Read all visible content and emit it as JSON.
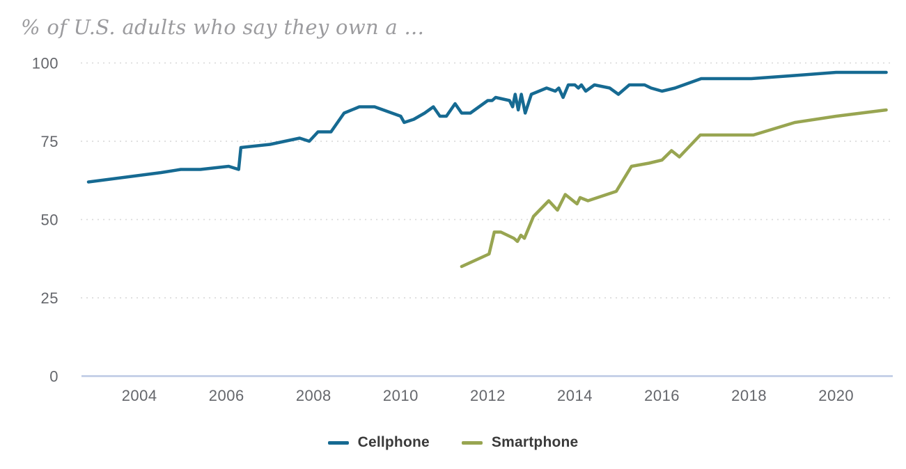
{
  "chart_data": {
    "type": "line",
    "title": "% of U.S. adults who say they own a ...",
    "xlabel": "",
    "ylabel": "",
    "x_ticks": [
      "2004",
      "2006",
      "2008",
      "2010",
      "2012",
      "2014",
      "2016",
      "2018",
      "2020"
    ],
    "y_ticks": [
      "0",
      "25",
      "50",
      "75",
      "100"
    ],
    "xlim": [
      2002.67,
      2021.3
    ],
    "ylim": [
      0,
      100
    ],
    "grid": "horizontal-dotted",
    "legend_position": "bottom-center",
    "series": [
      {
        "name": "Cellphone",
        "color": "#166a92",
        "points": [
          [
            2002.83,
            62
          ],
          [
            2004.5,
            65
          ],
          [
            2004.95,
            66
          ],
          [
            2005.4,
            66
          ],
          [
            2006.05,
            67
          ],
          [
            2006.28,
            66
          ],
          [
            2006.33,
            73
          ],
          [
            2007.0,
            74
          ],
          [
            2007.68,
            76
          ],
          [
            2007.9,
            75
          ],
          [
            2008.1,
            78
          ],
          [
            2008.4,
            78
          ],
          [
            2008.7,
            84
          ],
          [
            2009.05,
            86
          ],
          [
            2009.4,
            86
          ],
          [
            2009.8,
            84
          ],
          [
            2010.0,
            83
          ],
          [
            2010.08,
            81
          ],
          [
            2010.3,
            82
          ],
          [
            2010.55,
            84
          ],
          [
            2010.75,
            86
          ],
          [
            2010.9,
            83
          ],
          [
            2011.05,
            83
          ],
          [
            2011.25,
            87
          ],
          [
            2011.4,
            84
          ],
          [
            2011.6,
            84
          ],
          [
            2012.0,
            88
          ],
          [
            2012.1,
            88
          ],
          [
            2012.18,
            89
          ],
          [
            2012.5,
            88
          ],
          [
            2012.57,
            86
          ],
          [
            2012.63,
            90
          ],
          [
            2012.7,
            85
          ],
          [
            2012.77,
            90
          ],
          [
            2012.86,
            84
          ],
          [
            2013.0,
            90
          ],
          [
            2013.35,
            92
          ],
          [
            2013.55,
            91
          ],
          [
            2013.63,
            92
          ],
          [
            2013.73,
            89
          ],
          [
            2013.85,
            93
          ],
          [
            2014.0,
            93
          ],
          [
            2014.08,
            92
          ],
          [
            2014.15,
            93
          ],
          [
            2014.25,
            91
          ],
          [
            2014.45,
            93
          ],
          [
            2014.8,
            92
          ],
          [
            2015.0,
            90
          ],
          [
            2015.25,
            93
          ],
          [
            2015.6,
            93
          ],
          [
            2015.75,
            92
          ],
          [
            2016.0,
            91
          ],
          [
            2016.3,
            92
          ],
          [
            2016.9,
            95
          ],
          [
            2018.05,
            95
          ],
          [
            2019.05,
            96
          ],
          [
            2020.0,
            97
          ],
          [
            2021.15,
            97
          ]
        ]
      },
      {
        "name": "Smartphone",
        "color": "#98a551",
        "points": [
          [
            2011.4,
            35
          ],
          [
            2012.03,
            39
          ],
          [
            2012.15,
            46
          ],
          [
            2012.3,
            46
          ],
          [
            2012.6,
            44
          ],
          [
            2012.68,
            43
          ],
          [
            2012.76,
            45
          ],
          [
            2012.84,
            44
          ],
          [
            2013.05,
            51
          ],
          [
            2013.4,
            56
          ],
          [
            2013.6,
            53
          ],
          [
            2013.78,
            58
          ],
          [
            2014.05,
            55
          ],
          [
            2014.12,
            57
          ],
          [
            2014.3,
            56
          ],
          [
            2014.95,
            59
          ],
          [
            2015.3,
            67
          ],
          [
            2015.7,
            68
          ],
          [
            2016.0,
            69
          ],
          [
            2016.22,
            72
          ],
          [
            2016.4,
            70
          ],
          [
            2016.88,
            77
          ],
          [
            2018.1,
            77
          ],
          [
            2019.05,
            81
          ],
          [
            2020.0,
            83
          ],
          [
            2021.15,
            85
          ]
        ]
      }
    ]
  },
  "colors": {
    "background": "#ffffff",
    "title_text": "#9b9b9e",
    "tick_text": "#64666b",
    "grid_dotted": "#d8d8d8",
    "axis_zero_line": "#c6d1e8",
    "legend_text": "#3a3a3a"
  }
}
